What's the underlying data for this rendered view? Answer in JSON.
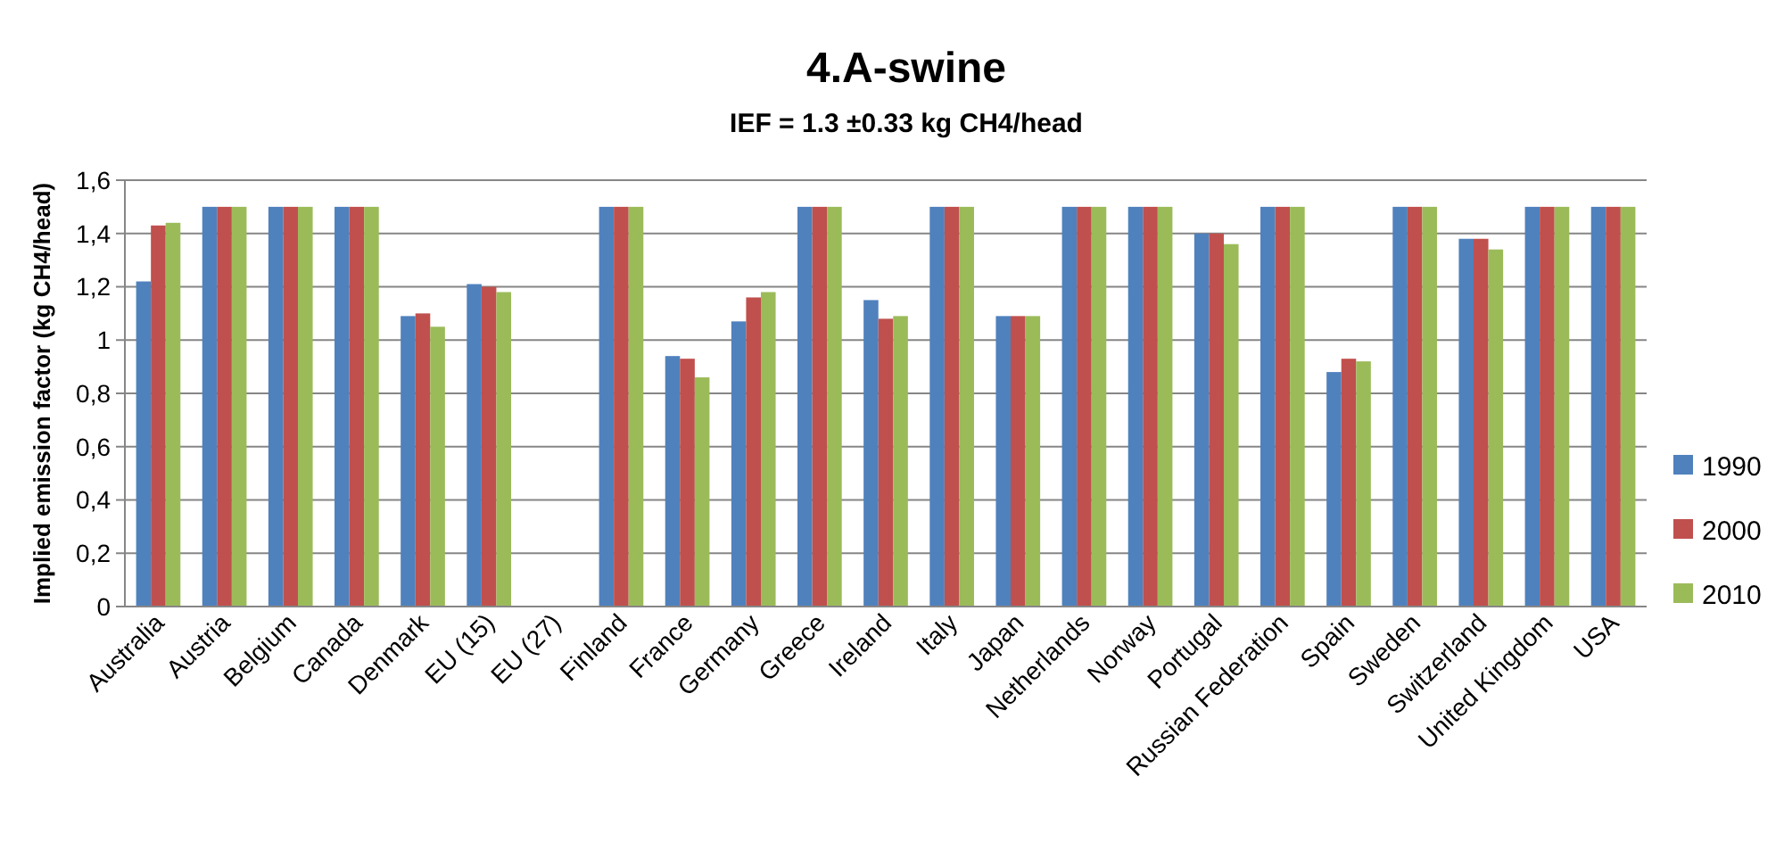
{
  "chart_data": {
    "type": "bar",
    "title": "4.A-swine",
    "subtitle": "IEF = 1.3 ±0.33 kg CH4/head",
    "ylabel": "Implied emission factor (kg CH4/head)",
    "categories": [
      "Australia",
      "Austria",
      "Belgium",
      "Canada",
      "Denmark",
      "EU (15)",
      "EU (27)",
      "Finland",
      "France",
      "Germany",
      "Greece",
      "Ireland",
      "Italy",
      "Japan",
      "Netherlands",
      "Norway",
      "Portugal",
      "Russian Federation",
      "Spain",
      "Sweden",
      "Switzerland",
      "United Kingdom",
      "USA"
    ],
    "series": [
      {
        "name": "1990",
        "color": "#4f81bd",
        "values": [
          1.22,
          1.5,
          1.5,
          1.5,
          1.09,
          1.21,
          null,
          1.5,
          0.94,
          1.07,
          1.5,
          1.15,
          1.5,
          1.09,
          1.5,
          1.5,
          1.4,
          1.5,
          0.88,
          1.5,
          1.38,
          1.5,
          1.5
        ]
      },
      {
        "name": "2000",
        "color": "#c0504d",
        "values": [
          1.43,
          1.5,
          1.5,
          1.5,
          1.1,
          1.2,
          null,
          1.5,
          0.93,
          1.16,
          1.5,
          1.08,
          1.5,
          1.09,
          1.5,
          1.5,
          1.4,
          1.5,
          0.93,
          1.5,
          1.38,
          1.5,
          1.5
        ]
      },
      {
        "name": "2010",
        "color": "#9bbb59",
        "values": [
          1.44,
          1.5,
          1.5,
          1.5,
          1.05,
          1.18,
          null,
          1.5,
          0.86,
          1.18,
          1.5,
          1.09,
          1.5,
          1.09,
          1.5,
          1.5,
          1.36,
          1.5,
          0.92,
          1.5,
          1.34,
          1.5,
          1.5
        ]
      }
    ],
    "ylim": [
      0,
      1.6
    ],
    "yticks": [
      0,
      {
        "value": 0.2,
        "label": "0,2"
      },
      {
        "value": 0.4,
        "label": "0,4"
      },
      {
        "value": 0.6,
        "label": "0,6"
      },
      {
        "value": 0.8,
        "label": "0,8"
      },
      1,
      {
        "value": 1.2,
        "label": "1,2"
      },
      {
        "value": 1.4,
        "label": "1,4"
      },
      {
        "value": 1.6,
        "label": "1,6"
      }
    ],
    "grid": "y",
    "legend": "right"
  }
}
